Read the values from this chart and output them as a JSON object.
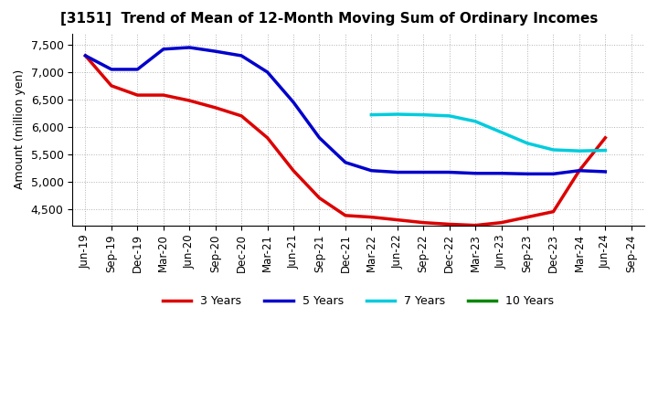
{
  "title": "[3151]  Trend of Mean of 12-Month Moving Sum of Ordinary Incomes",
  "ylabel": "Amount (million yen)",
  "background_color": "#ffffff",
  "grid_color": "#aaaaaa",
  "ylim": [
    4200,
    7700
  ],
  "yticks": [
    4500,
    5000,
    5500,
    6000,
    6500,
    7000,
    7500
  ],
  "series": {
    "3 Years": {
      "color": "#dd0000",
      "data": [
        [
          "Jun-19",
          7300
        ],
        [
          "Sep-19",
          6750
        ],
        [
          "Dec-19",
          6580
        ],
        [
          "Mar-20",
          6580
        ],
        [
          "Jun-20",
          6480
        ],
        [
          "Sep-20",
          6350
        ],
        [
          "Dec-20",
          6200
        ],
        [
          "Mar-21",
          5800
        ],
        [
          "Jun-21",
          5200
        ],
        [
          "Sep-21",
          4700
        ],
        [
          "Dec-21",
          4380
        ],
        [
          "Mar-22",
          4350
        ],
        [
          "Jun-22",
          4300
        ],
        [
          "Sep-22",
          4250
        ],
        [
          "Dec-22",
          4220
        ],
        [
          "Mar-23",
          4200
        ],
        [
          "Jun-23",
          4250
        ],
        [
          "Sep-23",
          4350
        ],
        [
          "Dec-23",
          4450
        ],
        [
          "Mar-24",
          5200
        ],
        [
          "Jun-24",
          5800
        ]
      ]
    },
    "5 Years": {
      "color": "#0000cc",
      "data": [
        [
          "Jun-19",
          7300
        ],
        [
          "Sep-19",
          7050
        ],
        [
          "Dec-19",
          7050
        ],
        [
          "Mar-20",
          7420
        ],
        [
          "Jun-20",
          7450
        ],
        [
          "Sep-20",
          7380
        ],
        [
          "Dec-20",
          7300
        ],
        [
          "Mar-21",
          7000
        ],
        [
          "Jun-21",
          6450
        ],
        [
          "Sep-21",
          5800
        ],
        [
          "Dec-21",
          5350
        ],
        [
          "Mar-22",
          5200
        ],
        [
          "Jun-22",
          5170
        ],
        [
          "Sep-22",
          5170
        ],
        [
          "Dec-22",
          5170
        ],
        [
          "Mar-23",
          5150
        ],
        [
          "Jun-23",
          5150
        ],
        [
          "Sep-23",
          5140
        ],
        [
          "Dec-23",
          5140
        ],
        [
          "Mar-24",
          5200
        ],
        [
          "Jun-24",
          5180
        ]
      ]
    },
    "7 Years": {
      "color": "#00ccdd",
      "data": [
        [
          "Mar-22",
          6220
        ],
        [
          "Jun-22",
          6230
        ],
        [
          "Sep-22",
          6220
        ],
        [
          "Dec-22",
          6200
        ],
        [
          "Mar-23",
          6100
        ],
        [
          "Jun-23",
          5900
        ],
        [
          "Sep-23",
          5700
        ],
        [
          "Dec-23",
          5580
        ],
        [
          "Mar-24",
          5560
        ],
        [
          "Jun-24",
          5570
        ]
      ]
    },
    "10 Years": {
      "color": "#008800",
      "data": []
    }
  },
  "legend_entries": [
    "3 Years",
    "5 Years",
    "7 Years",
    "10 Years"
  ],
  "legend_colors": [
    "#dd0000",
    "#0000cc",
    "#00ccdd",
    "#008800"
  ],
  "xticklabels": [
    "Jun-19",
    "Sep-19",
    "Dec-19",
    "Mar-20",
    "Jun-20",
    "Sep-20",
    "Dec-20",
    "Mar-21",
    "Jun-21",
    "Sep-21",
    "Dec-21",
    "Mar-22",
    "Jun-22",
    "Sep-22",
    "Dec-22",
    "Mar-23",
    "Jun-23",
    "Sep-23",
    "Dec-23",
    "Mar-24",
    "Jun-24",
    "Sep-24"
  ]
}
